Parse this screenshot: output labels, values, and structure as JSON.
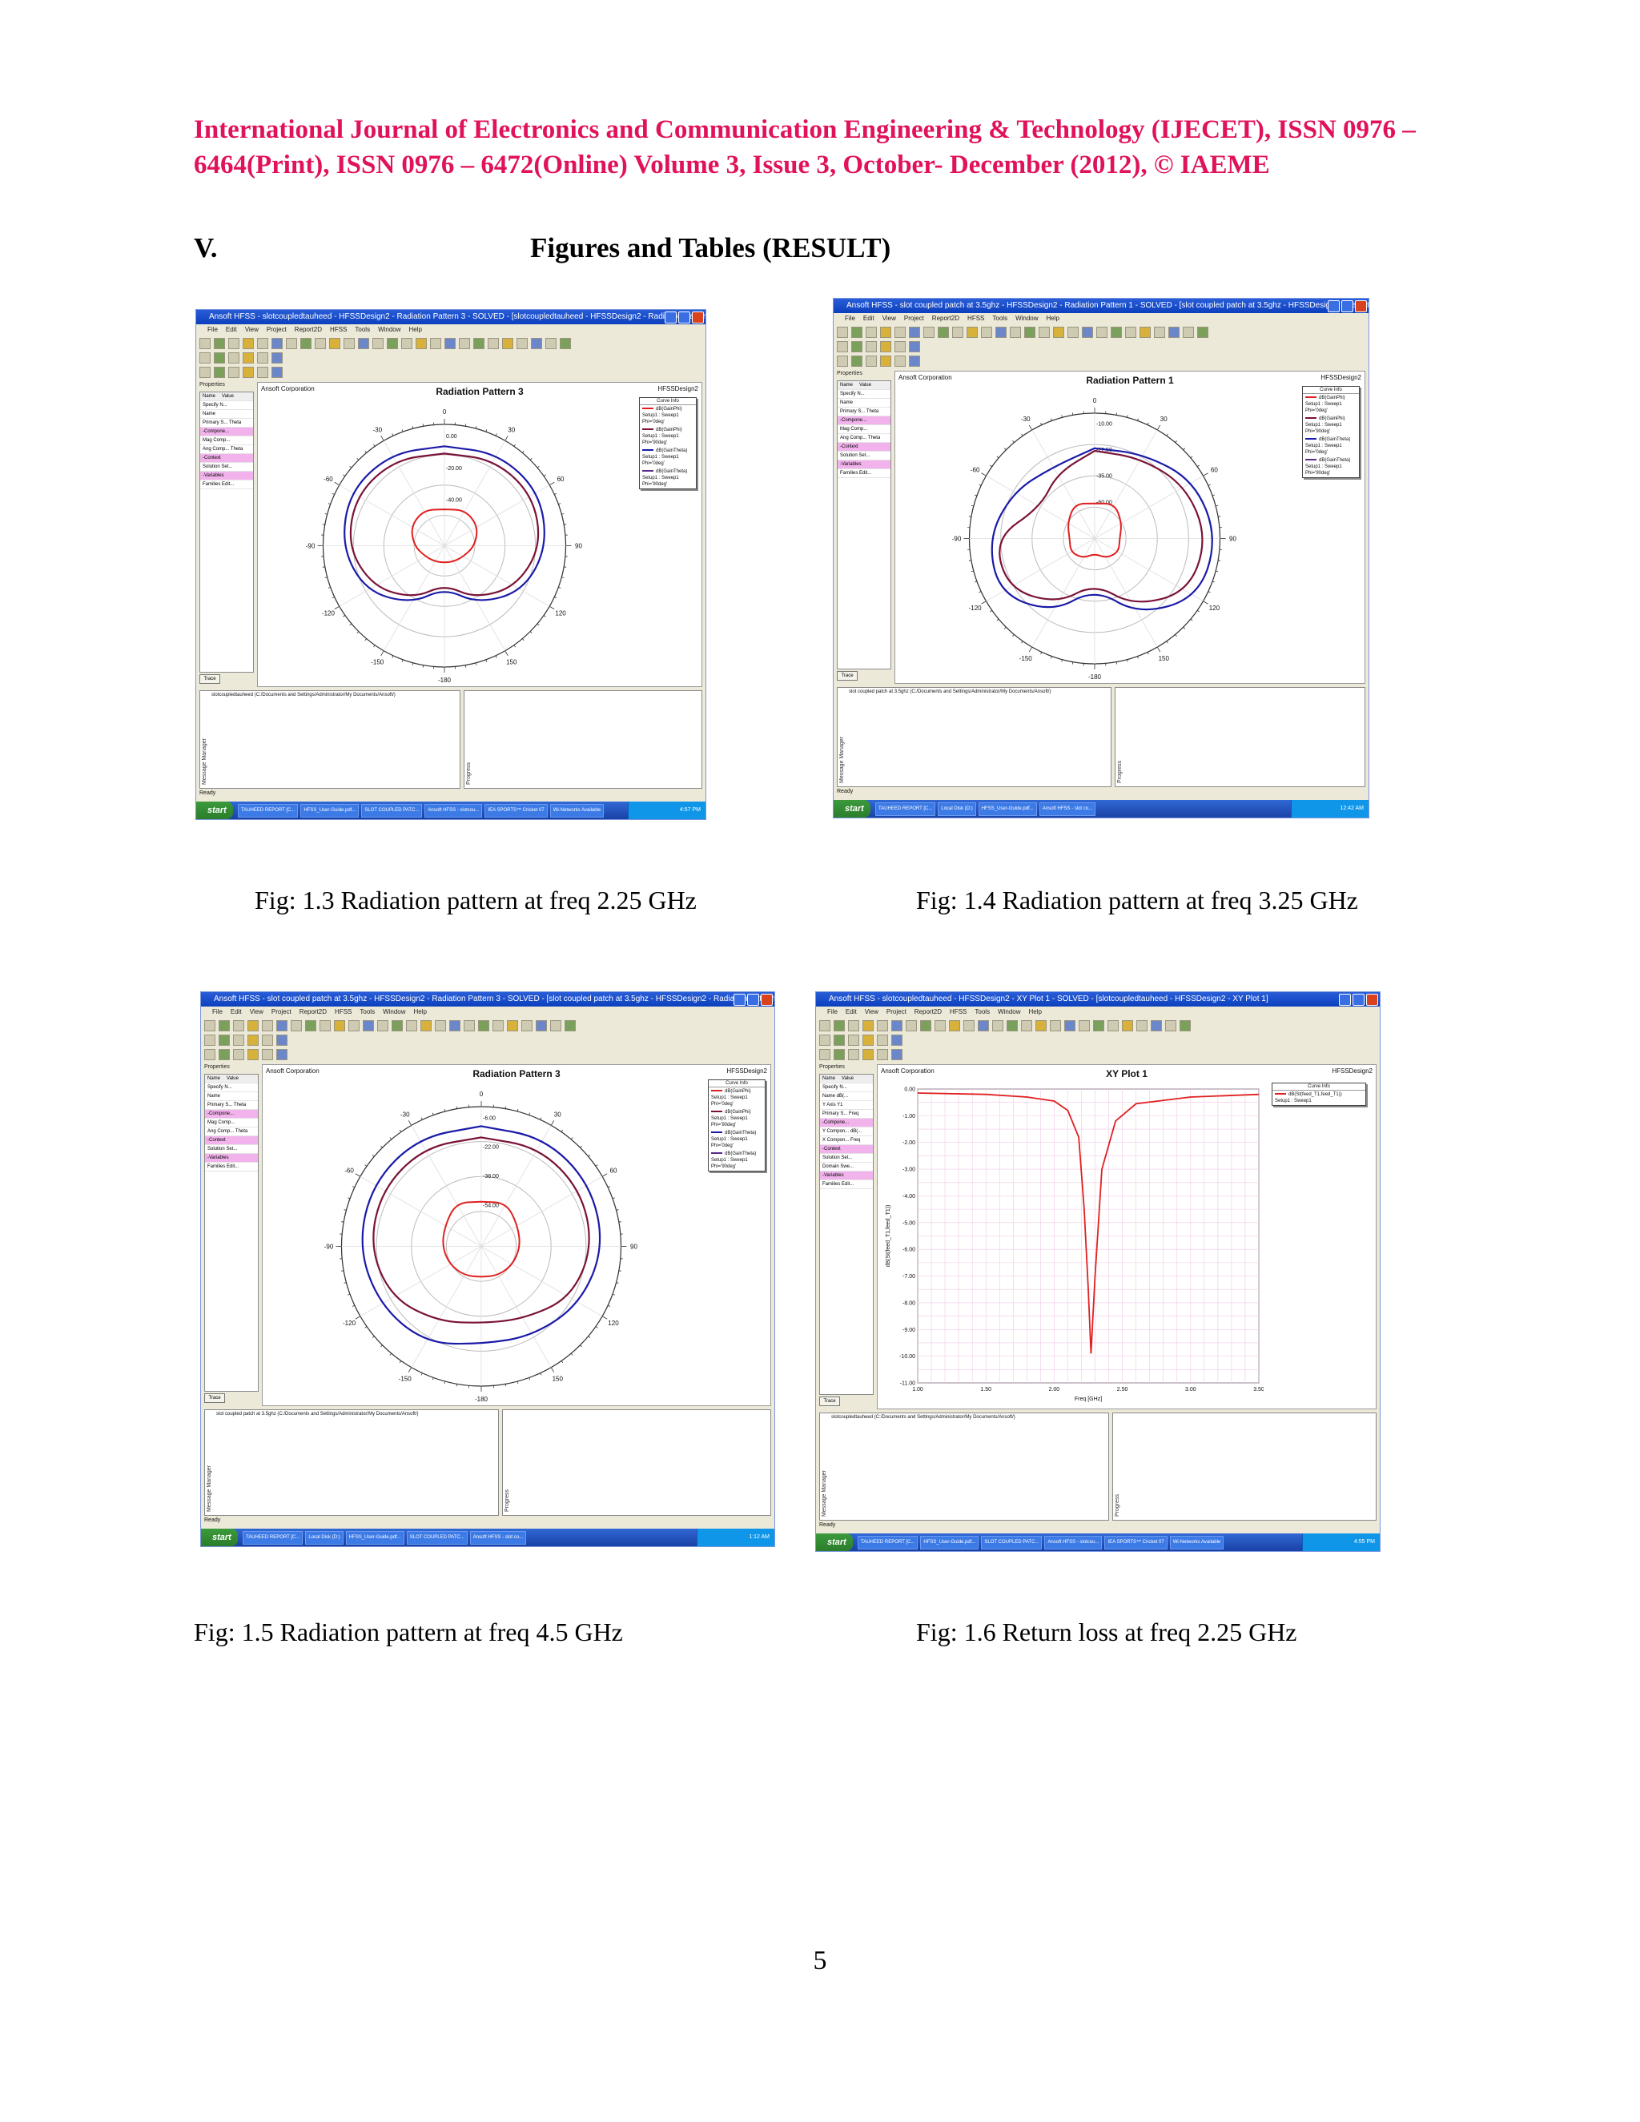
{
  "header": {
    "line1": "International Journal of Electronics and Communication Engineering & Technology (IJECET), ISSN 0976 –",
    "line2": "6464(Print), ISSN 0976 – 6472(Online) Volume 3, Issue 3, October- December (2012), © IAEME"
  },
  "section": {
    "number": "V.",
    "title": "Figures and Tables (RESULT)"
  },
  "page_number": "5",
  "colors": {
    "header": "#e0125b",
    "curve_red": "#e02020",
    "curve_blue": "#1a1aa8",
    "curve_darkred": "#7a1238",
    "curve_purple": "#5a2a8a"
  },
  "common": {
    "menu": [
      "File",
      "Edit",
      "View",
      "Project",
      "Report2D",
      "HFSS",
      "Tools",
      "Window",
      "Help"
    ],
    "properties_label": "Properties",
    "table_headers": [
      "Name",
      "Value"
    ],
    "corp": "Ansoft Corporation",
    "design": "HFSSDesign2",
    "curve_info": "Curve Info",
    "trace_tab": "Trace",
    "message_manager": "Message Manager",
    "progress": "Progress",
    "ready": "Ready",
    "start": "start",
    "polar_angles": [
      "0",
      "30",
      "60",
      "90",
      "120",
      "150",
      "-180",
      "-150",
      "-120",
      "-90",
      "-60",
      "-30"
    ]
  },
  "figures": [
    {
      "caption": "Fig: 1.3 Radiation pattern at freq 2.25 GHz",
      "window_title": "Ansoft HFSS - slotcoupledtauheed - HFSSDesign2 - Radiation Pattern 3 - SOLVED - [slotcoupledtauheed - HFSSDesign2 - Radiation Pattern 3]",
      "plot_title": "Radiation Pattern 3",
      "props": [
        "Specify N...",
        "Name",
        "Primary S... Theta",
        "-Compone...",
        "Mag Comp...",
        "Ang Comp... Theta",
        "-Context",
        "Solution Set...",
        "-Variables",
        "Families Edit..."
      ],
      "ring_labels": [
        "0.00",
        "-20.00",
        "-40.00"
      ],
      "legend": [
        {
          "name": "dB(GainPhi)",
          "setup": "Setup1 : Sweep1",
          "phi": "Phi='0deg'",
          "color": "#e02020"
        },
        {
          "name": "dB(GainPhi)",
          "setup": "Setup1 : Sweep1",
          "phi": "Phi='90deg'",
          "color": "#7a1238"
        },
        {
          "name": "dB(GainTheta)",
          "setup": "Setup1 : Sweep1",
          "phi": "Phi='0deg'",
          "color": "#1a1aa8"
        },
        {
          "name": "dB(GainTheta)",
          "setup": "Setup1 : Sweep1",
          "phi": "Phi='90deg'",
          "color": "#5a2a8a"
        }
      ],
      "message": "slotcoupledtauheed (C:/Documents and Settings/Administrator/My Documents/Ansoft/)",
      "taskbar": [
        "TAUHEED REPORT [C...",
        "HFSS_User-Guide.pdf...",
        "SLOT COUPLED PATC...",
        "Ansoft HFSS - slotcou...",
        "IEA SPORTS™ Cricket 07",
        "Wi-Networks Available"
      ],
      "clock": "4:57 PM"
    },
    {
      "caption": "Fig: 1.4 Radiation pattern at freq 3.25 GHz",
      "window_title": "Ansoft HFSS - slot coupled patch at 3.5ghz - HFSSDesign2 - Radiation Pattern 1 - SOLVED - [slot coupled patch at 3.5ghz - HFSSDesign2 - Radiation Pattern 1]",
      "plot_title": "Radiation Pattern 1",
      "props": [
        "Specify N...",
        "Name",
        "Primary S... Theta",
        "-Compone...",
        "Mag Comp...",
        "Ang Comp... Theta",
        "-Context",
        "Solution Set...",
        "-Variables",
        "Families Edit..."
      ],
      "ring_labels": [
        "-10.00",
        "-22.50",
        "-35.00",
        "-60.00"
      ],
      "legend": [
        {
          "name": "dB(GainPhi)",
          "setup": "Setup1 : Sweep1",
          "phi": "Phi='0deg'",
          "color": "#e02020"
        },
        {
          "name": "dB(GainPhi)",
          "setup": "Setup1 : Sweep1",
          "phi": "Phi='90deg'",
          "color": "#7a1238"
        },
        {
          "name": "dB(GainTheta)",
          "setup": "Setup1 : Sweep1",
          "phi": "Phi='0deg'",
          "color": "#1a1aa8"
        },
        {
          "name": "dB(GainTheta)",
          "setup": "Setup1 : Sweep1",
          "phi": "Phi='90deg'",
          "color": "#5a2a8a"
        }
      ],
      "message": "slot coupled patch at 3.5ghz (C:/Documents and Settings/Administrator/My Documents/Ansoft/)",
      "taskbar": [
        "TAUHEED REPORT [C...",
        "Local Disk (D:)",
        "HFSS_User-Guide.pdf...",
        "Ansoft HFSS - slot co..."
      ],
      "clock": "12:42 AM"
    },
    {
      "caption": "Fig: 1.5 Radiation pattern at freq 4.5 GHz",
      "window_title": "Ansoft HFSS - slot coupled patch at 3.5ghz - HFSSDesign2 - Radiation Pattern 3 - SOLVED - [slot coupled patch at 3.5ghz - HFSSDesign2 - Radiation Pattern 3]",
      "plot_title": "Radiation Pattern 3",
      "props": [
        "Specify N...",
        "Name",
        "Primary S... Theta",
        "-Compone...",
        "Mag Comp...",
        "Ang Comp... Theta",
        "-Context",
        "Solution Set...",
        "-Variables",
        "Families Edit..."
      ],
      "ring_labels": [
        "-6.00",
        "-22.00",
        "-38.00",
        "-54.00"
      ],
      "legend": [
        {
          "name": "dB(GainPhi)",
          "setup": "Setup1 : Sweep1",
          "phi": "Phi='0deg'",
          "color": "#e02020"
        },
        {
          "name": "dB(GainPhi)",
          "setup": "Setup1 : Sweep1",
          "phi": "Phi='90deg'",
          "color": "#7a1238"
        },
        {
          "name": "dB(GainTheta)",
          "setup": "Setup1 : Sweep1",
          "phi": "Phi='0deg'",
          "color": "#1a1aa8"
        },
        {
          "name": "dB(GainTheta)",
          "setup": "Setup1 : Sweep1",
          "phi": "Phi='90deg'",
          "color": "#5a2a8a"
        }
      ],
      "message": "slot coupled patch at 3.5ghz (C:/Documents and Settings/Administrator/My Documents/Ansoft/)",
      "taskbar": [
        "TAUHEED REPORT [C...",
        "Local Disk (D:)",
        "HFSS_User-Guide.pdf...",
        "SLOT COUPLED PATC...",
        "Ansoft HFSS - slot co..."
      ],
      "clock": "1:12 AM"
    },
    {
      "caption": "Fig: 1.6 Return loss at freq 2.25 GHz",
      "window_title": "Ansoft HFSS - slotcoupledtauheed - HFSSDesign2 - XY Plot 1 - SOLVED - [slotcoupledtauheed - HFSSDesign2 - XY Plot 1]",
      "plot_title": "XY Plot 1",
      "props": [
        "Specify N...",
        "Name dB(...",
        "Y Axis Y1",
        "Primary S... Freq",
        "-Compone...",
        "Y Compon... dB(...",
        "X Compon... Freq",
        "-Context",
        "Solution Set...",
        "Domain Swe...",
        "-Variables",
        "Families Edit..."
      ],
      "legend": [
        {
          "name": "dB(St(feed_T1,feed_T1))",
          "setup": "Setup1 : Sweep1",
          "phi": "",
          "color": "#e02020"
        }
      ],
      "message": "slotcoupledtauheed (C:/Documents and Settings/Administrator/My Documents/Ansoft/)",
      "taskbar": [
        "TAUHEED REPORT [C...",
        "HFSS_User-Guide.pdf...",
        "SLOT COUPLED PATC...",
        "Ansoft HFSS - slotcou...",
        "IEA SPORTS™ Cricket 07",
        "Wi-Networks Available"
      ],
      "clock": "4:55 PM"
    }
  ],
  "chart_data": [
    {
      "type": "polar",
      "title": "Radiation Pattern 3",
      "series": [
        {
          "name": "dB(GainPhi) Phi='0deg'",
          "theta_deg": [
            0,
            30,
            60,
            90,
            120,
            150,
            180,
            -150,
            -120,
            -90,
            -60,
            -30
          ],
          "r": [
            0.3,
            0.34,
            0.32,
            0.25,
            0.18,
            0.15,
            0.14,
            0.15,
            0.18,
            0.25,
            0.32,
            0.34
          ]
        },
        {
          "name": "dB(GainTheta) Phi='0deg'",
          "theta_deg": [
            0,
            30,
            60,
            90,
            120,
            150,
            180,
            -150,
            -120,
            -90,
            -60,
            -30
          ],
          "r": [
            0.82,
            0.88,
            0.9,
            0.85,
            0.75,
            0.55,
            0.35,
            0.55,
            0.75,
            0.85,
            0.9,
            0.88
          ]
        },
        {
          "name": "dB(GainTheta) Phi='90deg'",
          "theta_deg": [
            0,
            30,
            60,
            90,
            120,
            150,
            180,
            -150,
            -120,
            -90,
            -60,
            -30
          ],
          "r": [
            0.76,
            0.82,
            0.84,
            0.8,
            0.68,
            0.5,
            0.32,
            0.5,
            0.68,
            0.8,
            0.84,
            0.82
          ]
        }
      ]
    },
    {
      "type": "polar",
      "title": "Radiation Pattern 1",
      "series": [
        {
          "name": "dB(GainPhi) Phi='0deg'",
          "theta_deg": [
            0,
            30,
            60,
            90,
            120,
            150,
            180,
            -150,
            -120,
            -90,
            -60,
            -30
          ],
          "r": [
            0.28,
            0.32,
            0.25,
            0.2,
            0.22,
            0.18,
            0.12,
            0.18,
            0.22,
            0.2,
            0.25,
            0.32
          ]
        },
        {
          "name": "dB(GainTheta) Phi='0deg'",
          "theta_deg": [
            0,
            30,
            60,
            90,
            120,
            150,
            180,
            -150,
            -120,
            -90,
            -60,
            -30
          ],
          "r": [
            0.72,
            0.78,
            0.92,
            0.98,
            0.95,
            0.7,
            0.4,
            0.68,
            0.88,
            0.85,
            0.75,
            0.66
          ]
        },
        {
          "name": "dB(GainTheta) Phi='90deg'",
          "theta_deg": [
            0,
            30,
            60,
            90,
            120,
            150,
            180,
            -150,
            -120,
            -90,
            -60,
            -30
          ],
          "r": [
            0.7,
            0.74,
            0.84,
            0.9,
            0.86,
            0.62,
            0.36,
            0.6,
            0.8,
            0.8,
            0.5,
            0.6
          ]
        }
      ]
    },
    {
      "type": "polar",
      "title": "Radiation Pattern 3",
      "series": [
        {
          "name": "dB(GainPhi) Phi='0deg'",
          "theta_deg": [
            0,
            30,
            60,
            90,
            120,
            150,
            180,
            -150,
            -120,
            -90,
            -60,
            -30
          ],
          "r": [
            0.32,
            0.36,
            0.3,
            0.28,
            0.26,
            0.24,
            0.22,
            0.24,
            0.26,
            0.28,
            0.3,
            0.36
          ]
        },
        {
          "name": "dB(GainTheta) Phi='0deg'",
          "theta_deg": [
            0,
            30,
            60,
            90,
            120,
            150,
            180,
            -150,
            -120,
            -90,
            -60,
            -30
          ],
          "r": [
            0.86,
            0.9,
            0.9,
            0.88,
            0.82,
            0.74,
            0.7,
            0.8,
            0.84,
            0.88,
            0.9,
            0.9
          ]
        },
        {
          "name": "dB(GainTheta) Phi='90deg'",
          "theta_deg": [
            0,
            30,
            60,
            90,
            120,
            150,
            180,
            -150,
            -120,
            -90,
            -60,
            -30
          ],
          "r": [
            0.78,
            0.82,
            0.82,
            0.8,
            0.74,
            0.6,
            0.55,
            0.62,
            0.74,
            0.8,
            0.82,
            0.82
          ]
        }
      ]
    },
    {
      "type": "line",
      "title": "XY Plot 1",
      "xlabel": "Freq [GHz]",
      "ylabel": "dB(St(feed_T1,feed_T1))",
      "xlim": [
        1.0,
        3.5
      ],
      "ylim": [
        -11.0,
        0.0
      ],
      "x_ticks": [
        "1.00",
        "1.50",
        "2.00",
        "2.50",
        "3.00",
        "3.50"
      ],
      "y_ticks": [
        "0.00",
        "-1.00",
        "-2.00",
        "-3.00",
        "-4.00",
        "-5.00",
        "-6.00",
        "-7.00",
        "-8.00",
        "-9.00",
        "-10.00",
        "-11.00"
      ],
      "series": [
        {
          "name": "dB(St(feed_T1,feed_T1))",
          "x": [
            1.0,
            1.5,
            1.8,
            2.0,
            2.1,
            2.18,
            2.22,
            2.25,
            2.27,
            2.3,
            2.35,
            2.45,
            2.6,
            3.0,
            3.5
          ],
          "y": [
            -0.15,
            -0.2,
            -0.3,
            -0.45,
            -0.8,
            -1.8,
            -4.5,
            -7.5,
            -9.9,
            -7.0,
            -3.0,
            -1.2,
            -0.55,
            -0.3,
            -0.2
          ]
        }
      ]
    }
  ]
}
